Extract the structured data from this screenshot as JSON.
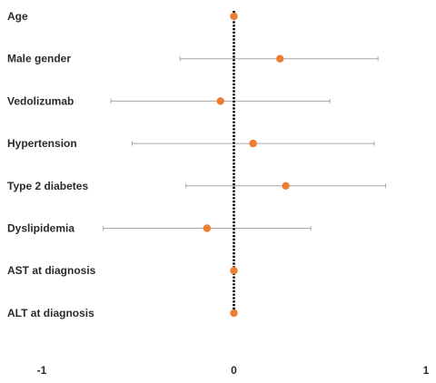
{
  "chart_data": {
    "type": "scatter",
    "subtype": "forest-plot",
    "title": "",
    "xlabel": "",
    "ylabel": "",
    "xlim": [
      -1,
      1
    ],
    "xticks": [
      -1,
      0,
      1
    ],
    "xtick_labels": [
      "-1",
      "0",
      "1"
    ],
    "reference_line": 0,
    "grid": false,
    "legend": "none",
    "colors": {
      "point": "#ed7d31",
      "error_bar": "#a6a6a6",
      "reference_line": "#000000",
      "text": "#2b2b2b"
    },
    "rows": [
      {
        "label": "Age",
        "estimate": 0.0,
        "ci_low": 0.0,
        "ci_high": 0.0
      },
      {
        "label": "Male gender",
        "estimate": 0.24,
        "ci_low": -0.28,
        "ci_high": 0.75
      },
      {
        "label": "Vedolizumab",
        "estimate": -0.07,
        "ci_low": -0.64,
        "ci_high": 0.5
      },
      {
        "label": "Hypertension",
        "estimate": 0.1,
        "ci_low": -0.53,
        "ci_high": 0.73
      },
      {
        "label": "Type 2 diabetes",
        "estimate": 0.27,
        "ci_low": -0.25,
        "ci_high": 0.79
      },
      {
        "label": "Dyslipidemia",
        "estimate": -0.14,
        "ci_low": -0.68,
        "ci_high": 0.4
      },
      {
        "label": "AST at diagnosis",
        "estimate": 0.0,
        "ci_low": 0.0,
        "ci_high": 0.0
      },
      {
        "label": "ALT at diagnosis",
        "estimate": 0.0,
        "ci_low": 0.0,
        "ci_high": 0.0
      }
    ]
  }
}
